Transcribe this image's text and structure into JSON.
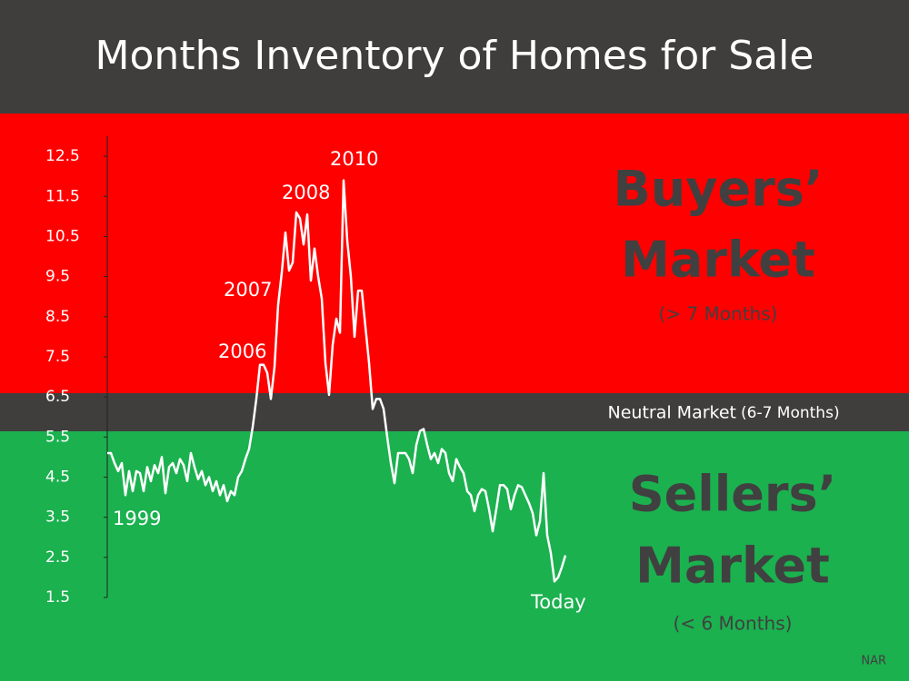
{
  "chart_data": {
    "type": "line",
    "title": "Months Inventory of Homes for Sale",
    "color": "#ffffff",
    "ylim": [
      1.5,
      13
    ],
    "yticks": [
      1.5,
      2.5,
      3.5,
      4.5,
      5.5,
      6.5,
      7.5,
      8.5,
      9.5,
      10.5,
      11.5,
      12.5
    ],
    "values": [
      5.1,
      5.1,
      4.85,
      4.65,
      4.85,
      4.05,
      4.65,
      4.15,
      4.65,
      4.6,
      4.15,
      4.75,
      4.4,
      4.8,
      4.6,
      5.0,
      4.1,
      4.75,
      4.85,
      4.6,
      4.95,
      4.8,
      4.4,
      5.1,
      4.75,
      4.45,
      4.65,
      4.3,
      4.5,
      4.15,
      4.4,
      4.05,
      4.3,
      3.9,
      4.15,
      4.05,
      4.5,
      4.65,
      4.95,
      5.2,
      5.75,
      6.45,
      7.3,
      7.3,
      7.1,
      6.45,
      7.25,
      8.8,
      9.6,
      10.6,
      9.65,
      9.85,
      11.1,
      10.95,
      10.3,
      11.05,
      9.4,
      10.2,
      9.5,
      8.95,
      7.35,
      6.55,
      7.8,
      8.45,
      8.1,
      11.9,
      10.4,
      9.5,
      8.0,
      9.15,
      9.15,
      8.25,
      7.35,
      6.2,
      6.45,
      6.45,
      6.2,
      5.5,
      4.85,
      4.35,
      5.1,
      5.1,
      5.1,
      4.95,
      4.6,
      5.3,
      5.65,
      5.7,
      5.3,
      4.95,
      5.1,
      4.85,
      5.2,
      5.1,
      4.6,
      4.4,
      4.95,
      4.75,
      4.6,
      4.15,
      4.05,
      3.65,
      4.05,
      4.2,
      4.15,
      3.7,
      3.15,
      3.7,
      4.3,
      4.3,
      4.2,
      3.7,
      4.05,
      4.3,
      4.25,
      4.05,
      3.85,
      3.6,
      3.05,
      3.4,
      4.6,
      3.05,
      2.6,
      1.9,
      2.0,
      2.25,
      2.55
    ],
    "annotations": [
      "1999",
      "2006",
      "2007",
      "2008",
      "2010",
      "Today"
    ],
    "zones": {
      "buyers": [
        "Buyers’",
        "Market",
        "(> 7 Months)"
      ],
      "neutral": [
        "Neutral Market",
        "(6-7 Months)"
      ],
      "sellers": [
        "Sellers’",
        "Market",
        "(< 6 Months)"
      ]
    },
    "source": "NAR"
  }
}
